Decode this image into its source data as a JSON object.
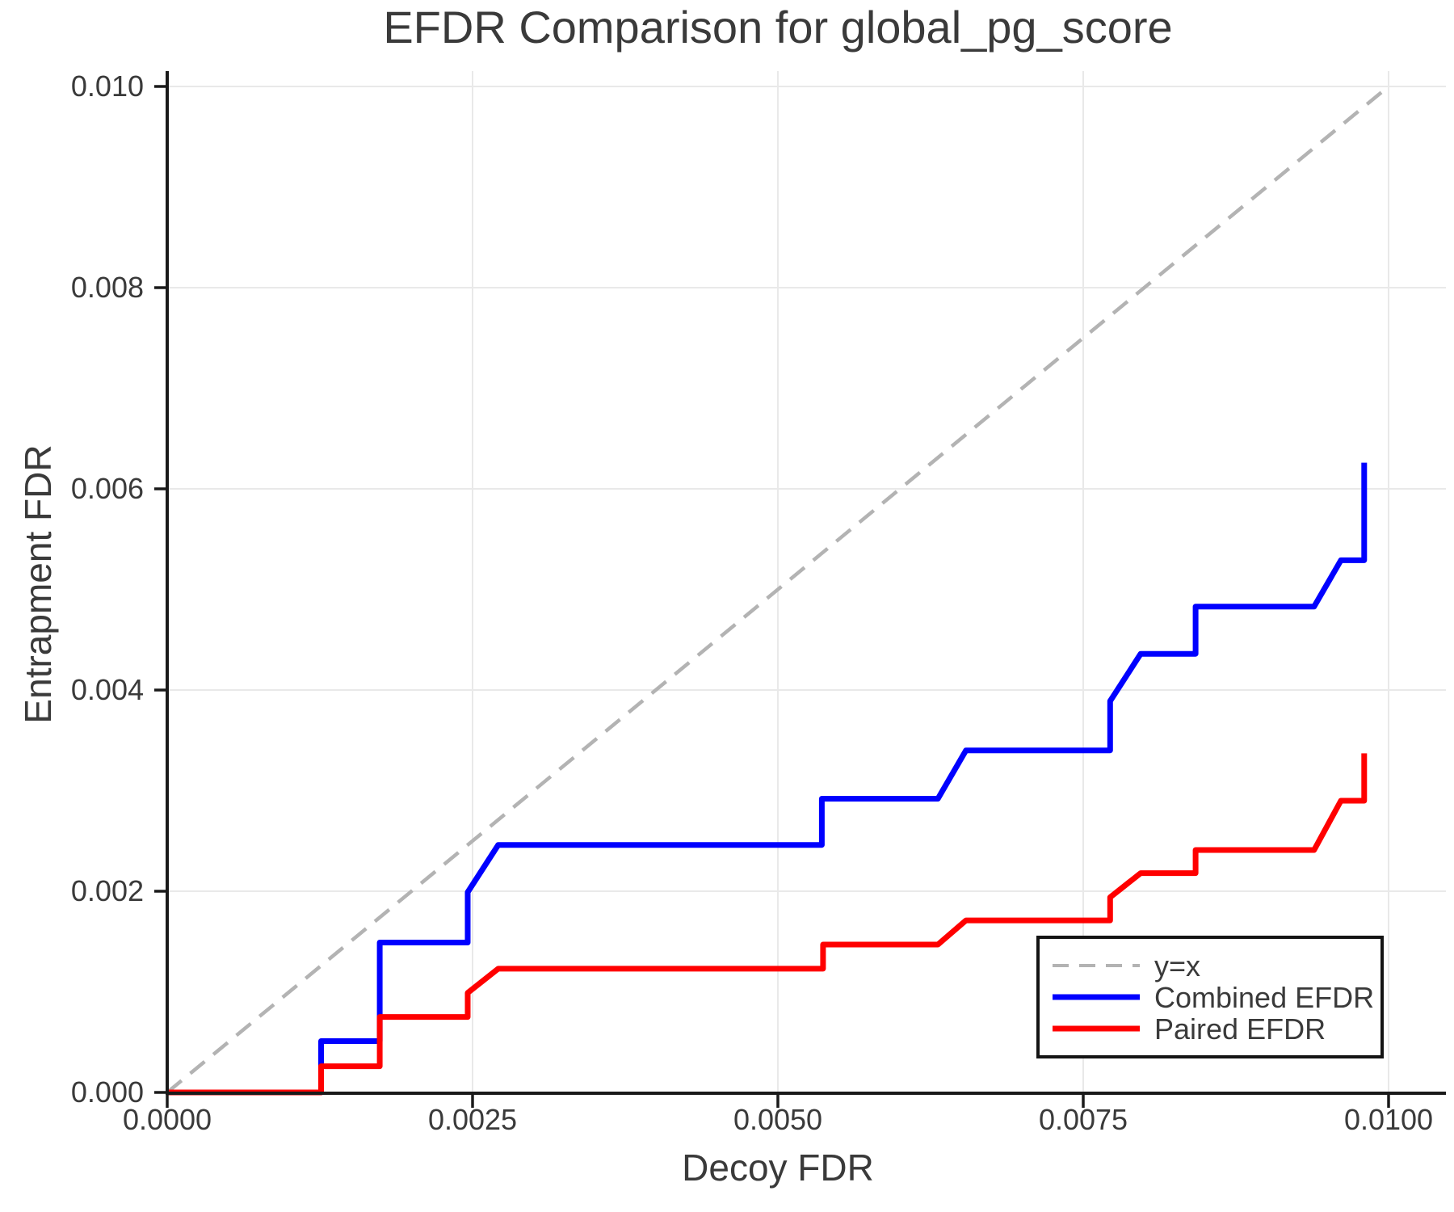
{
  "title": "EFDR Comparison for global_pg_score",
  "chart_data": {
    "type": "line",
    "title": "EFDR Comparison for global_pg_score",
    "xlabel": "Decoy FDR",
    "ylabel": "Entrapment FDR",
    "xlim": [
      0.0,
      0.01
    ],
    "ylim": [
      0.0,
      0.01
    ],
    "grid": true,
    "legend_position": "lower right",
    "x_ticks": [
      0.0,
      0.0025,
      0.005,
      0.0075,
      0.01
    ],
    "x_tick_labels": [
      "0.0000",
      "0.0025",
      "0.0050",
      "0.0075",
      "0.0100"
    ],
    "y_ticks": [
      0.0,
      0.002,
      0.004,
      0.006,
      0.008,
      0.01
    ],
    "y_tick_labels": [
      "0.000",
      "0.002",
      "0.004",
      "0.006",
      "0.008",
      "0.010"
    ],
    "colors": {
      "identity": "#b3b3b3",
      "combined": "#0000ff",
      "paired": "#ff0000",
      "grid": "#e9e9e9",
      "axis": "#1a1a1a",
      "text": "#3a3a3a"
    },
    "series": [
      {
        "name": "y=x",
        "color": "#b3b3b3",
        "style": "dashed",
        "points": [
          [
            0.0,
            0.0
          ],
          [
            0.01,
            0.01
          ]
        ]
      },
      {
        "name": "Combined EFDR",
        "color": "#0000ff",
        "style": "solid",
        "points": [
          [
            0.0,
            0.0
          ],
          [
            0.00126,
            0.0
          ],
          [
            0.00126,
            0.00051
          ],
          [
            0.00174,
            0.00051
          ],
          [
            0.00174,
            0.00149
          ],
          [
            0.00246,
            0.00149
          ],
          [
            0.00246,
            0.00199
          ],
          [
            0.00271,
            0.00246
          ],
          [
            0.00536,
            0.00246
          ],
          [
            0.00536,
            0.00292
          ],
          [
            0.00631,
            0.00292
          ],
          [
            0.00654,
            0.0034
          ],
          [
            0.00772,
            0.0034
          ],
          [
            0.00772,
            0.00389
          ],
          [
            0.00797,
            0.00436
          ],
          [
            0.00842,
            0.00436
          ],
          [
            0.00842,
            0.00483
          ],
          [
            0.00939,
            0.00483
          ],
          [
            0.00961,
            0.00529
          ],
          [
            0.0098,
            0.00529
          ],
          [
            0.0098,
            0.00626
          ]
        ]
      },
      {
        "name": "Paired EFDR",
        "color": "#ff0000",
        "style": "solid",
        "points": [
          [
            0.0,
            0.0
          ],
          [
            0.00126,
            0.0
          ],
          [
            0.00126,
            0.00026
          ],
          [
            0.00174,
            0.00026
          ],
          [
            0.00174,
            0.00075
          ],
          [
            0.00246,
            0.00075
          ],
          [
            0.00246,
            0.00099
          ],
          [
            0.00271,
            0.00123
          ],
          [
            0.00537,
            0.00123
          ],
          [
            0.00537,
            0.00147
          ],
          [
            0.00631,
            0.00147
          ],
          [
            0.00654,
            0.00171
          ],
          [
            0.00772,
            0.00171
          ],
          [
            0.00772,
            0.00194
          ],
          [
            0.00797,
            0.00218
          ],
          [
            0.00842,
            0.00218
          ],
          [
            0.00842,
            0.00241
          ],
          [
            0.00939,
            0.00241
          ],
          [
            0.00961,
            0.0029
          ],
          [
            0.0098,
            0.0029
          ],
          [
            0.0098,
            0.00337
          ]
        ]
      }
    ]
  },
  "legend": {
    "items": [
      "y=x",
      "Combined EFDR",
      "Paired EFDR"
    ]
  }
}
